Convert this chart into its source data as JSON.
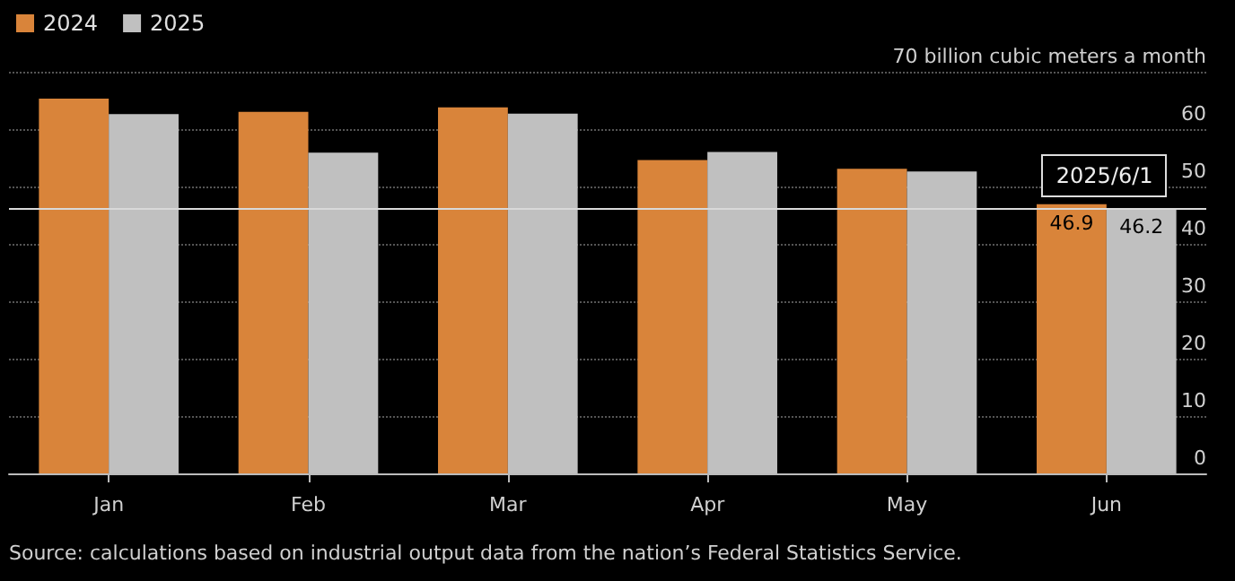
{
  "chart_data": {
    "type": "bar",
    "categories": [
      "Jan",
      "Feb",
      "Mar",
      "Apr",
      "May",
      "Jun"
    ],
    "series": [
      {
        "name": "2024",
        "color": "#d9843a",
        "values": [
          65.3,
          63.0,
          63.8,
          54.6,
          53.1,
          46.9
        ],
        "value_labels": [
          null,
          null,
          null,
          null,
          null,
          "46.9"
        ]
      },
      {
        "name": "2025",
        "color": "#c0c0c0",
        "values": [
          62.6,
          55.9,
          62.7,
          56.0,
          52.6,
          46.2
        ],
        "value_labels": [
          null,
          null,
          null,
          null,
          null,
          "46.2"
        ]
      }
    ],
    "ylim": [
      0,
      70
    ],
    "yticks": [
      0,
      10,
      20,
      30,
      40,
      50,
      60,
      {
        "value": 70,
        "label": "70 billion cubic meters a month"
      }
    ],
    "grid": "y",
    "legend": "top left",
    "ref_lines": [
      {
        "axis": "y",
        "value": 46.2,
        "color": "#d9d9d9"
      }
    ],
    "annotations": [
      {
        "text": "2025/6/1",
        "x": "Jun",
        "y": 46.2
      },
      "Source: calculations based on industrial output data from the nation’s Federal Statistics Service."
    ]
  }
}
